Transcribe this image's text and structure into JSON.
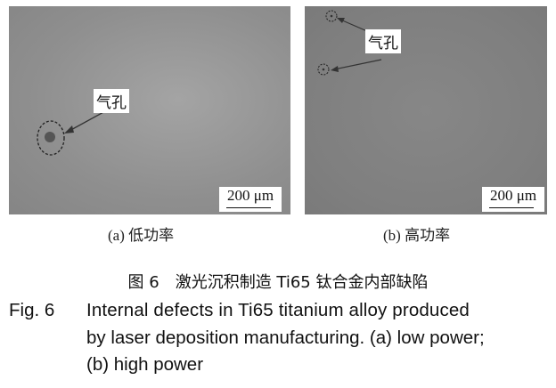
{
  "panels": [
    {
      "pore_label": "气孔",
      "scale_label": "200 μm",
      "caption": "(a) 低功率"
    },
    {
      "pore_label": "气孔",
      "scale_label": "200 μm",
      "caption": "(b) 高功率"
    }
  ],
  "caption_cn": "图 6　激光沉积制造 Ti65 钛合金内部缺陷",
  "caption_en": {
    "label": "Fig. 6",
    "lines": [
      "Internal defects in Ti65 titanium alloy produced",
      "by laser deposition manufacturing. (a) low power;",
      "(b) high power"
    ]
  }
}
